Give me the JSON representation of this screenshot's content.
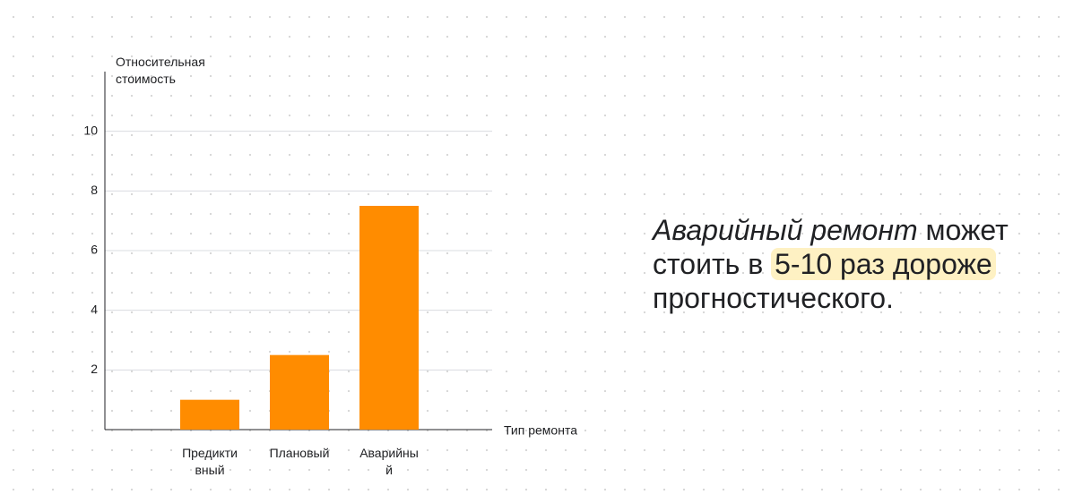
{
  "chart_data": {
    "type": "bar",
    "y_label": "Относительная стоимость",
    "x_label": "Тип ремонта",
    "categories": [
      "Предиктивный",
      "Плановый",
      "Аварийный"
    ],
    "values": [
      1,
      2.5,
      7.5
    ],
    "color": "#ff8c00",
    "ylim": [
      0,
      12
    ],
    "yticks": [
      2,
      4,
      6,
      8,
      10
    ],
    "grid": true
  },
  "message": {
    "emphasis": "Аварийный ремонт",
    "text1": "может стоить в",
    "highlight": "5-10 раз дороже",
    "text2": "прогностического."
  }
}
